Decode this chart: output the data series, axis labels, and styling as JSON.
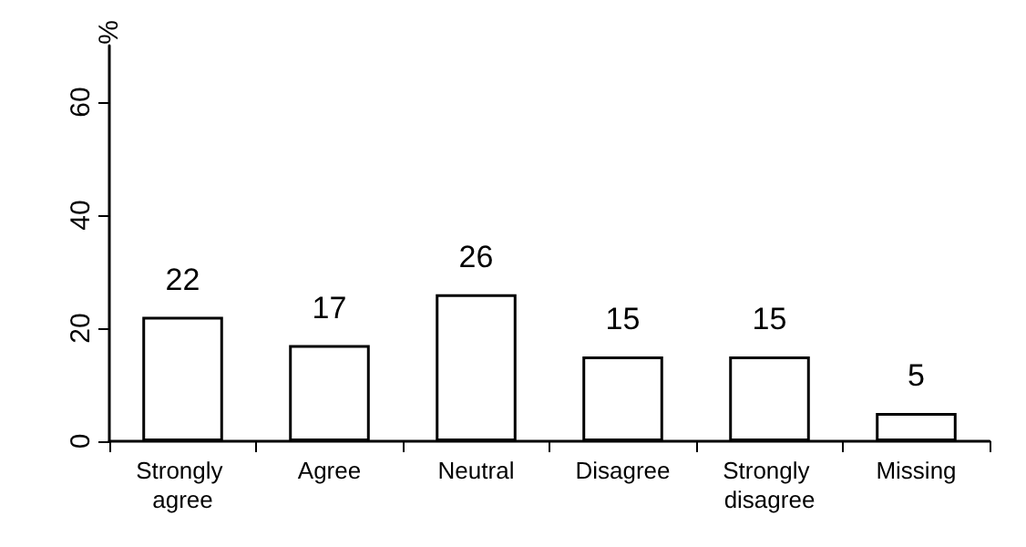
{
  "chart_data": {
    "type": "bar",
    "ylabel": "%",
    "categories": [
      "Strongly agree",
      "Agree",
      "Neutral",
      "Disagree",
      "Strongly disagree",
      "Missing"
    ],
    "values": [
      22,
      17,
      26,
      15,
      15,
      5
    ],
    "color": "#ffffff",
    "ylim": [
      0,
      70
    ],
    "yticks": [
      0,
      20,
      40,
      60
    ],
    "data_labels": true,
    "grid": false
  }
}
